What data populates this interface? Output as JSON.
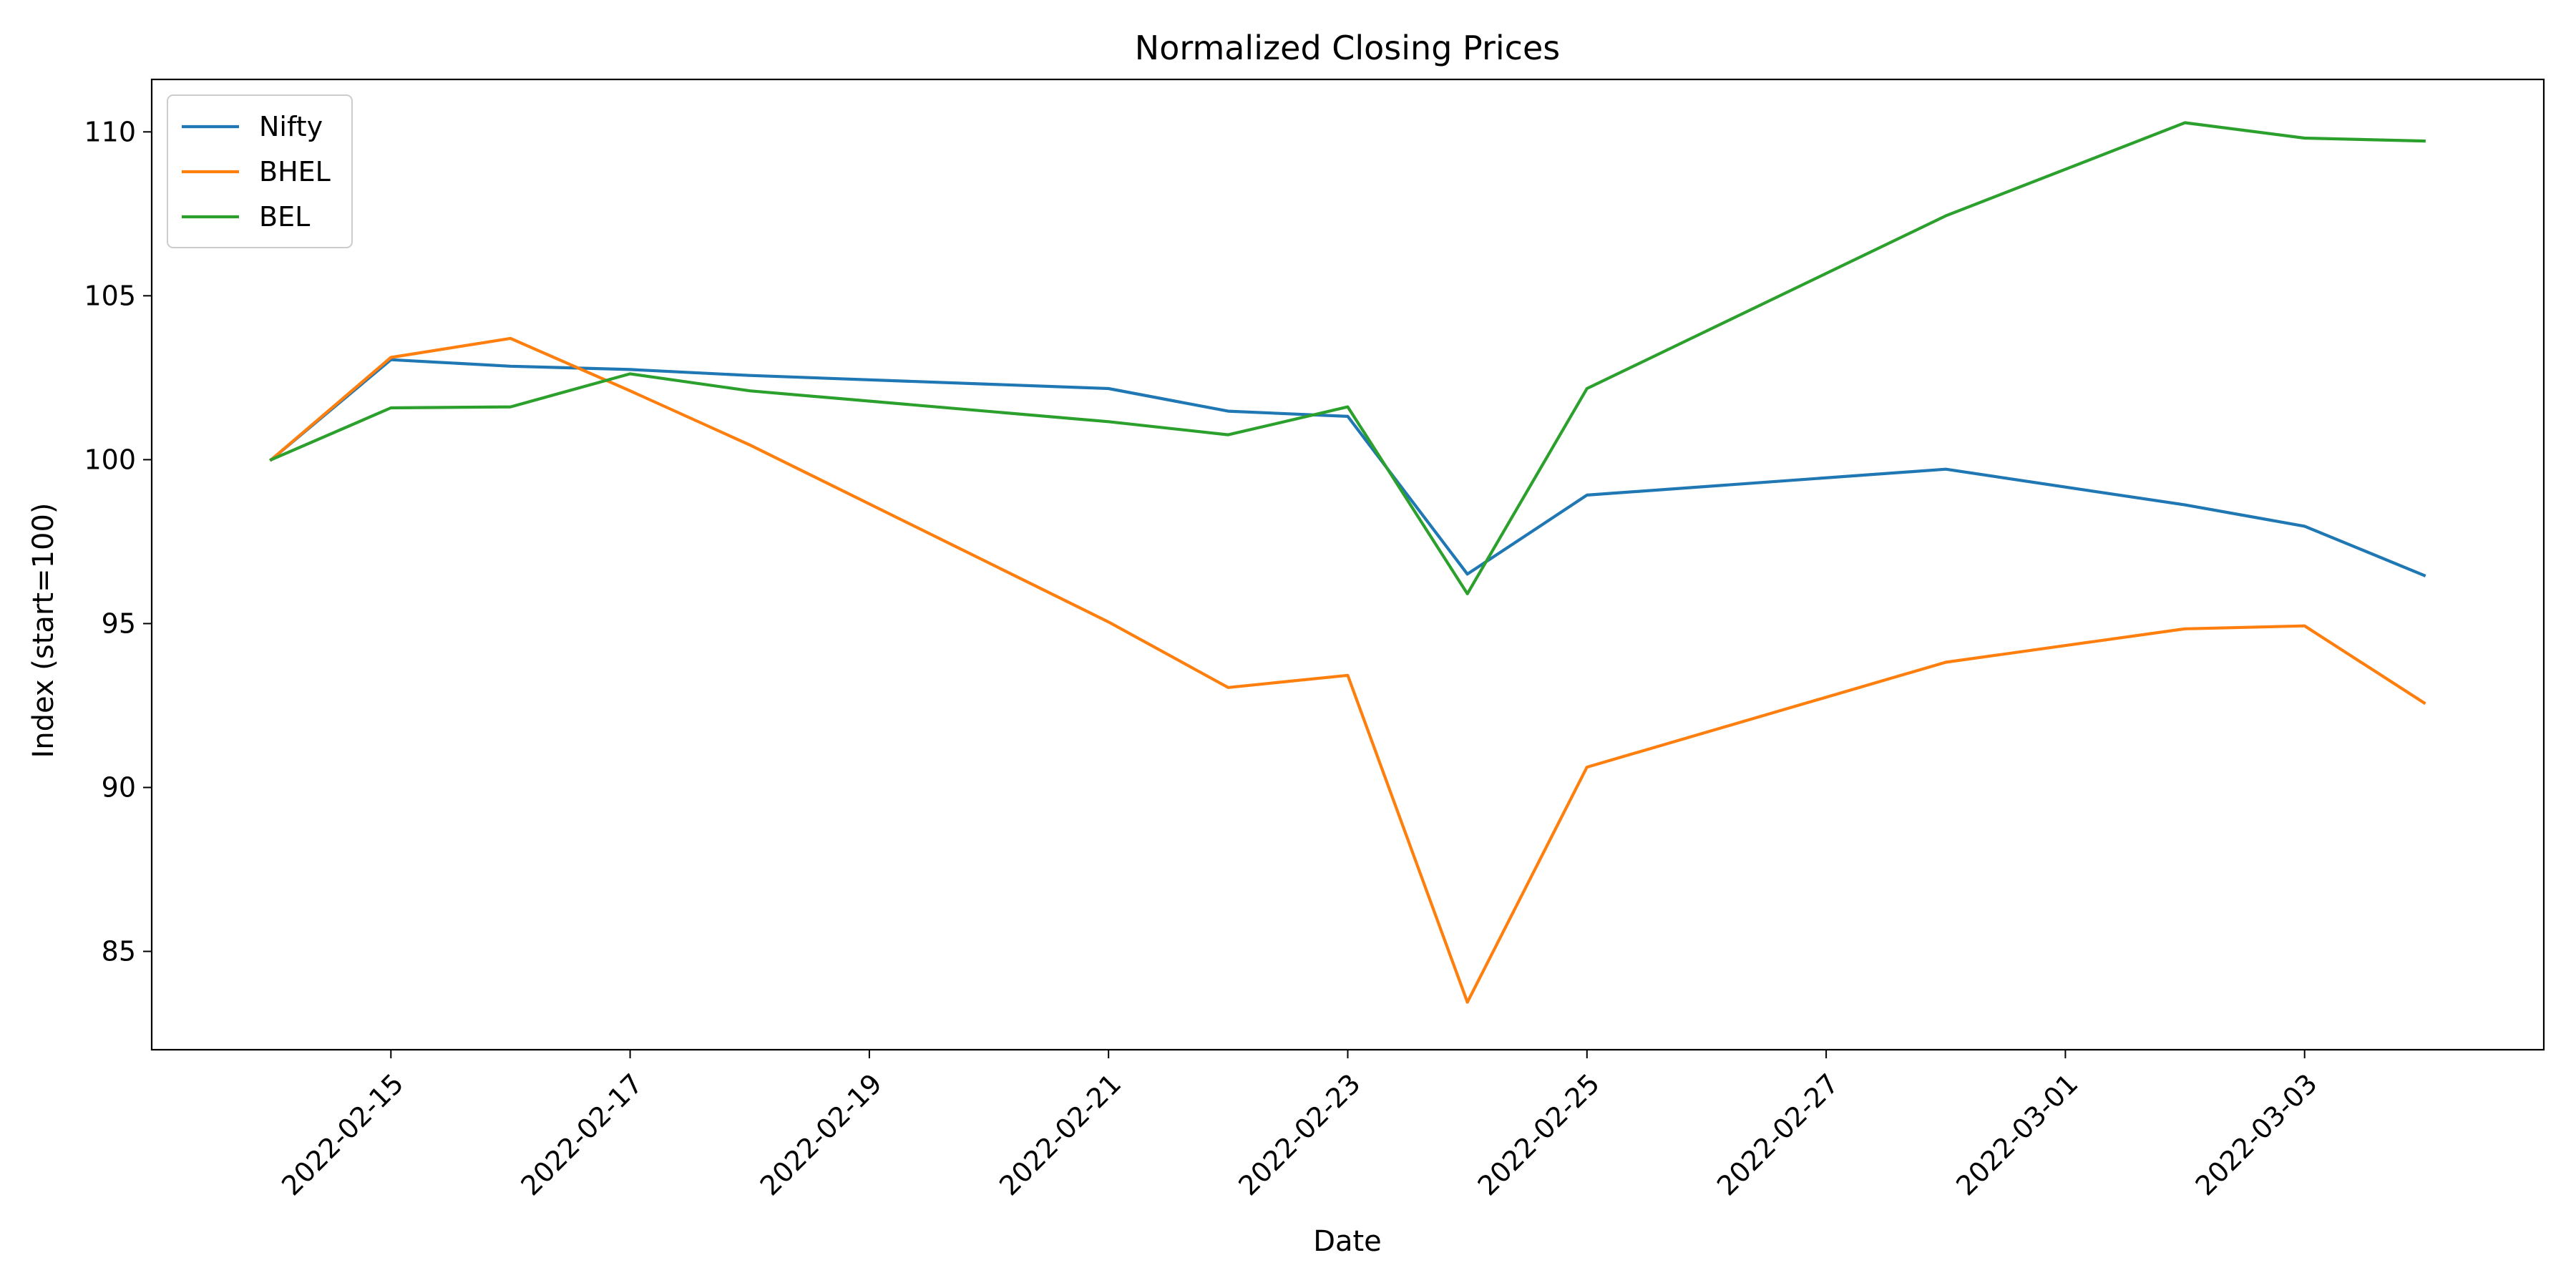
{
  "chart_data": {
    "type": "line",
    "title": "Normalized Closing Prices",
    "xlabel": "Date",
    "ylabel": "Index (start=100)",
    "x_axis_type": "date",
    "xlim": [
      "2022-02-13",
      "2022-03-05"
    ],
    "ylim": [
      82,
      111.6
    ],
    "x_ticks": [
      "2022-02-15",
      "2022-02-17",
      "2022-02-19",
      "2022-02-21",
      "2022-02-23",
      "2022-02-25",
      "2022-02-27",
      "2022-03-01",
      "2022-03-03"
    ],
    "y_ticks": [
      85,
      90,
      95,
      100,
      105,
      110
    ],
    "grid": false,
    "legend_position": "top-left",
    "x": [
      "2022-02-14",
      "2022-02-15",
      "2022-02-16",
      "2022-02-17",
      "2022-02-18",
      "2022-02-21",
      "2022-02-22",
      "2022-02-23",
      "2022-02-24",
      "2022-02-25",
      "2022-02-28",
      "2022-03-02",
      "2022-03-03",
      "2022-03-04"
    ],
    "series": [
      {
        "name": "Nifty",
        "color": "#1f77b4",
        "values": [
          100.0,
          103.05,
          102.85,
          102.75,
          102.57,
          102.17,
          101.48,
          101.32,
          96.51,
          98.92,
          99.71,
          98.62,
          97.97,
          96.47
        ]
      },
      {
        "name": "BHEL",
        "color": "#ff7f0e",
        "values": [
          100.0,
          103.12,
          103.7,
          102.1,
          100.45,
          95.05,
          93.05,
          93.42,
          83.45,
          90.62,
          93.82,
          94.84,
          94.93,
          92.58
        ]
      },
      {
        "name": "BEL",
        "color": "#2ca02c",
        "values": [
          100.0,
          101.58,
          101.61,
          102.62,
          102.1,
          101.16,
          100.76,
          101.61,
          95.91,
          102.17,
          107.44,
          110.28,
          109.81,
          109.72
        ]
      }
    ]
  }
}
